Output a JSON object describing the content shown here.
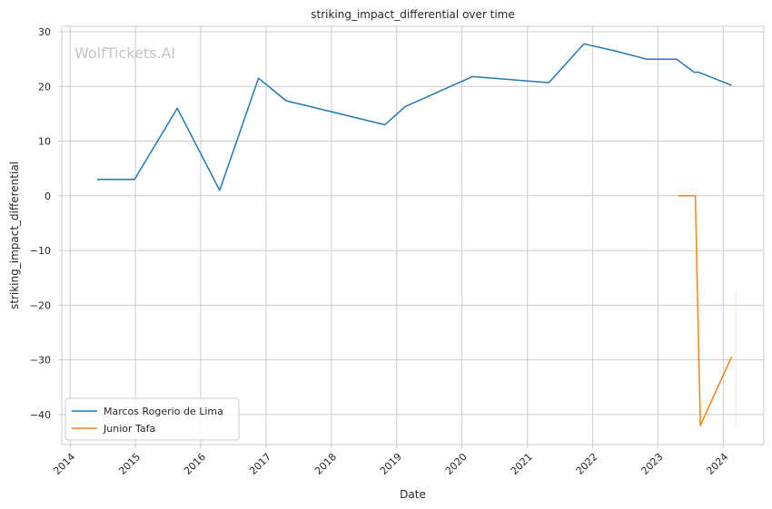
{
  "watermark": "WolfTickets.AI",
  "chart_data": {
    "type": "line",
    "title": "striking_impact_differential over time",
    "xlabel": "Date",
    "ylabel": "striking_impact_differential",
    "xlim": [
      "2013-11-15",
      "2024-08-15"
    ],
    "ylim": [
      -45.5,
      31
    ],
    "x_ticks": [
      "2014",
      "2015",
      "2016",
      "2017",
      "2018",
      "2019",
      "2020",
      "2021",
      "2022",
      "2023",
      "2024"
    ],
    "y_ticks": [
      30,
      20,
      10,
      0,
      -10,
      -20,
      -30,
      -40
    ],
    "y_tick_labels": [
      "30",
      "20",
      "10",
      "0",
      "−10",
      "−20",
      "−30",
      "−40"
    ],
    "grid": true,
    "legend_position": "lower-left",
    "series": [
      {
        "name": "Marcos Rogerio de Lima",
        "color": "#1f77b4",
        "points": [
          [
            "2014-06-01",
            3
          ],
          [
            "2014-12-27",
            3
          ],
          [
            "2015-08-23",
            16
          ],
          [
            "2016-04-16",
            1
          ],
          [
            "2016-11-19",
            21.5
          ],
          [
            "2017-01-15",
            20
          ],
          [
            "2017-04-22",
            17.4
          ],
          [
            "2018-10-27",
            13
          ],
          [
            "2019-02-17",
            16.3
          ],
          [
            "2020-02-29",
            21.8
          ],
          [
            "2021-05-01",
            20.7
          ],
          [
            "2021-11-13",
            27.8
          ],
          [
            "2022-05-07",
            26.5
          ],
          [
            "2022-10-29",
            25
          ],
          [
            "2023-04-15",
            25
          ],
          [
            "2023-07-22",
            22.6
          ],
          [
            "2023-08-15",
            22.6
          ],
          [
            "2024-02-17",
            20.2
          ]
        ]
      },
      {
        "name": "Junior Tafa",
        "color": "#ff7f0e",
        "points": [
          [
            "2023-04-22",
            0
          ],
          [
            "2023-07-29",
            0
          ],
          [
            "2023-08-26",
            -42
          ],
          [
            "2024-02-17",
            -29.4
          ]
        ]
      }
    ]
  }
}
